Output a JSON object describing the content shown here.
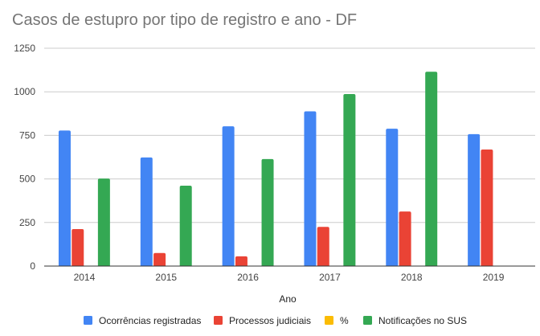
{
  "chart_data": {
    "type": "bar",
    "title": "Casos de estupro por tipo de registro e ano - DF",
    "xlabel": "Ano",
    "ylabel": "",
    "categories": [
      "2014",
      "2015",
      "2016",
      "2017",
      "2018",
      "2019"
    ],
    "ylim": [
      0,
      1250
    ],
    "yticks": [
      0,
      250,
      500,
      750,
      1000,
      1250
    ],
    "grid": true,
    "legend_position": "bottom",
    "series": [
      {
        "name": "Ocorrências registradas",
        "color": "#4285f4",
        "values": [
          778,
          623,
          802,
          888,
          788,
          757
        ]
      },
      {
        "name": "Processos judiciais",
        "color": "#ea4335",
        "values": [
          212,
          75,
          56,
          225,
          313,
          669
        ]
      },
      {
        "name": "%",
        "color": "#fbbc04",
        "values": [
          null,
          null,
          null,
          null,
          null,
          null
        ]
      },
      {
        "name": "Notificações no SUS",
        "color": "#34a853",
        "values": [
          502,
          461,
          614,
          987,
          1115,
          null
        ]
      }
    ]
  }
}
